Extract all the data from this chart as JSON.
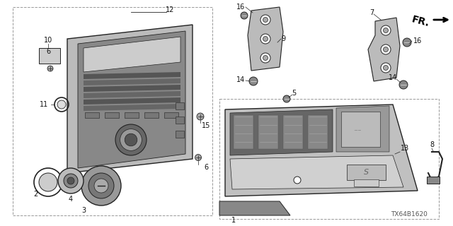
{
  "bg_color": "#ffffff",
  "watermark": "TX64B1620",
  "line_color": "#222222",
  "label_fontsize": 7.0,
  "watermark_fontsize": 6.5,
  "fr_fontsize": 10
}
